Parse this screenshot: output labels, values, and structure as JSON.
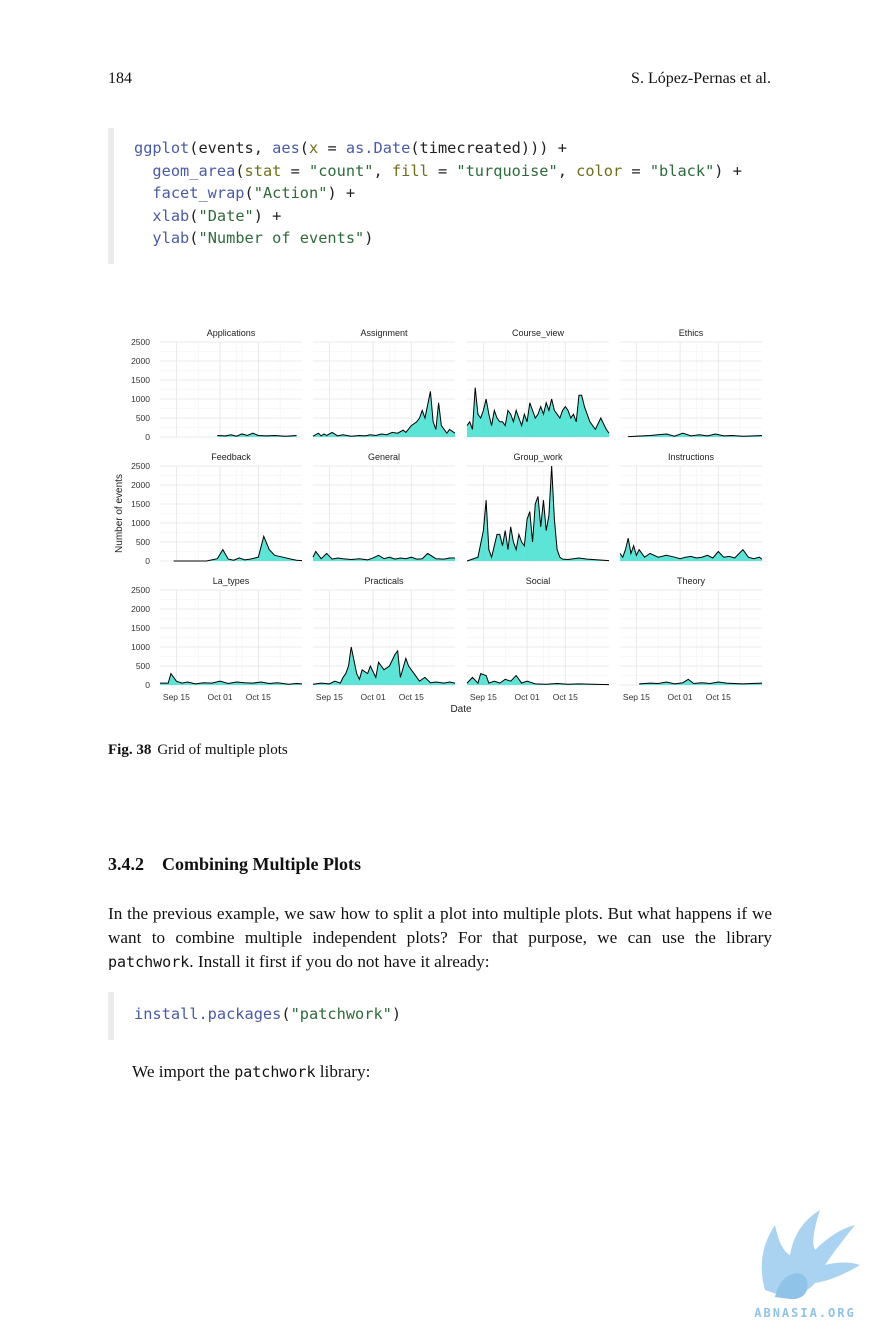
{
  "header": {
    "page_number": "184",
    "running_head": "S. López-Pernas et al."
  },
  "code_block_1": {
    "tokens": [
      [
        [
          "fn",
          "ggplot"
        ],
        [
          "plain",
          "(events, "
        ],
        [
          "fn",
          "aes"
        ],
        [
          "plain",
          "("
        ],
        [
          "arg",
          "x"
        ],
        [
          "plain",
          " = "
        ],
        [
          "fn",
          "as.Date"
        ],
        [
          "plain",
          "(timecreated))) +"
        ]
      ],
      [
        [
          "plain",
          "  "
        ],
        [
          "fn",
          "geom_area"
        ],
        [
          "plain",
          "("
        ],
        [
          "arg",
          "stat"
        ],
        [
          "plain",
          " = "
        ],
        [
          "str",
          "\"count\""
        ],
        [
          "plain",
          ", "
        ],
        [
          "arg",
          "fill"
        ],
        [
          "plain",
          " = "
        ],
        [
          "str",
          "\"turquoise\""
        ],
        [
          "plain",
          ", "
        ],
        [
          "arg",
          "color"
        ],
        [
          "plain",
          " = "
        ],
        [
          "str",
          "\"black\""
        ],
        [
          "plain",
          ") +"
        ]
      ],
      [
        [
          "plain",
          "  "
        ],
        [
          "fn",
          "facet_wrap"
        ],
        [
          "plain",
          "("
        ],
        [
          "str",
          "\"Action\""
        ],
        [
          "plain",
          ") +"
        ]
      ],
      [
        [
          "plain",
          "  "
        ],
        [
          "fn",
          "xlab"
        ],
        [
          "plain",
          "("
        ],
        [
          "str",
          "\"Date\""
        ],
        [
          "plain",
          ") +"
        ]
      ],
      [
        [
          "plain",
          "  "
        ],
        [
          "fn",
          "ylab"
        ],
        [
          "plain",
          "("
        ],
        [
          "str",
          "\"Number of events\""
        ],
        [
          "plain",
          ")"
        ]
      ]
    ]
  },
  "chart_data": {
    "type": "area",
    "xlabel": "Date",
    "ylabel": "Number of events",
    "ylim": [
      0,
      2500
    ],
    "y_ticks": [
      0,
      500,
      1000,
      1500,
      2000,
      2500
    ],
    "x_ticks": [
      "Sep 15",
      "Oct 01",
      "Oct 15"
    ],
    "x_tick_dates": [
      "2023-09-15",
      "2023-10-01",
      "2023-10-15"
    ],
    "x_range": [
      "2023-09-09",
      "2023-10-31"
    ],
    "grid": true,
    "fill_color": "#40E0D0",
    "line_color": "#000000",
    "series": [
      {
        "name": "Applications",
        "x": [
          "2023-09-30",
          "2023-10-03",
          "2023-10-05",
          "2023-10-07",
          "2023-10-09",
          "2023-10-11",
          "2023-10-13",
          "2023-10-15",
          "2023-10-18",
          "2023-10-21",
          "2023-10-25",
          "2023-10-27",
          "2023-10-29"
        ],
        "values": [
          40,
          30,
          60,
          20,
          80,
          40,
          100,
          40,
          30,
          40,
          20,
          30,
          40
        ]
      },
      {
        "name": "Assignment",
        "x": [
          "2023-09-09",
          "2023-09-11",
          "2023-09-12",
          "2023-09-13",
          "2023-09-14",
          "2023-09-16",
          "2023-09-18",
          "2023-09-20",
          "2023-09-23",
          "2023-09-26",
          "2023-09-28",
          "2023-09-30",
          "2023-10-02",
          "2023-10-04",
          "2023-10-06",
          "2023-10-08",
          "2023-10-10",
          "2023-10-12",
          "2023-10-13",
          "2023-10-15",
          "2023-10-17",
          "2023-10-18",
          "2023-10-19",
          "2023-10-20",
          "2023-10-22",
          "2023-10-23",
          "2023-10-24",
          "2023-10-25",
          "2023-10-26",
          "2023-10-28",
          "2023-10-29",
          "2023-10-31"
        ],
        "values": [
          20,
          100,
          30,
          80,
          40,
          120,
          30,
          60,
          20,
          40,
          30,
          60,
          40,
          80,
          60,
          120,
          100,
          180,
          120,
          300,
          400,
          500,
          700,
          500,
          1200,
          400,
          200,
          900,
          300,
          100,
          200,
          100
        ]
      },
      {
        "name": "Course_view",
        "x": [
          "2023-09-09",
          "2023-09-10",
          "2023-09-11",
          "2023-09-12",
          "2023-09-13",
          "2023-09-14",
          "2023-09-15",
          "2023-09-16",
          "2023-09-17",
          "2023-09-18",
          "2023-09-19",
          "2023-09-20",
          "2023-09-21",
          "2023-09-22",
          "2023-09-23",
          "2023-09-24",
          "2023-09-25",
          "2023-09-26",
          "2023-09-27",
          "2023-09-28",
          "2023-09-29",
          "2023-09-30",
          "2023-10-01",
          "2023-10-02",
          "2023-10-03",
          "2023-10-04",
          "2023-10-05",
          "2023-10-06",
          "2023-10-07",
          "2023-10-08",
          "2023-10-09",
          "2023-10-10",
          "2023-10-11",
          "2023-10-12",
          "2023-10-13",
          "2023-10-14",
          "2023-10-15",
          "2023-10-16",
          "2023-10-17",
          "2023-10-18",
          "2023-10-19",
          "2023-10-20",
          "2023-10-21",
          "2023-10-22",
          "2023-10-23",
          "2023-10-24",
          "2023-10-25",
          "2023-10-26",
          "2023-10-28",
          "2023-10-30",
          "2023-10-31"
        ],
        "values": [
          300,
          400,
          200,
          1300,
          600,
          500,
          700,
          1000,
          600,
          300,
          700,
          500,
          400,
          400,
          300,
          700,
          600,
          400,
          700,
          500,
          300,
          600,
          400,
          900,
          700,
          500,
          600,
          800,
          600,
          900,
          700,
          1000,
          700,
          600,
          500,
          700,
          800,
          700,
          500,
          600,
          400,
          1100,
          1100,
          800,
          600,
          400,
          300,
          200,
          500,
          200,
          100
        ]
      },
      {
        "name": "Ethics",
        "x": [
          "2023-09-12",
          "2023-09-20",
          "2023-09-26",
          "2023-09-29",
          "2023-10-02",
          "2023-10-05",
          "2023-10-08",
          "2023-10-11",
          "2023-10-14",
          "2023-10-17",
          "2023-10-20",
          "2023-10-24",
          "2023-10-28",
          "2023-10-31"
        ],
        "values": [
          10,
          40,
          80,
          20,
          100,
          30,
          60,
          30,
          80,
          30,
          40,
          20,
          30,
          40
        ]
      },
      {
        "name": "Feedback",
        "x": [
          "2023-09-14",
          "2023-09-20",
          "2023-09-26",
          "2023-09-30",
          "2023-10-02",
          "2023-10-04",
          "2023-10-06",
          "2023-10-08",
          "2023-10-10",
          "2023-10-12",
          "2023-10-15",
          "2023-10-17",
          "2023-10-19",
          "2023-10-21",
          "2023-10-24",
          "2023-10-27",
          "2023-10-29",
          "2023-10-31"
        ],
        "values": [
          0,
          0,
          0,
          60,
          300,
          50,
          20,
          80,
          30,
          50,
          100,
          650,
          300,
          150,
          100,
          50,
          20,
          10
        ]
      },
      {
        "name": "General",
        "x": [
          "2023-09-09",
          "2023-09-10",
          "2023-09-12",
          "2023-09-14",
          "2023-09-16",
          "2023-09-18",
          "2023-09-20",
          "2023-09-23",
          "2023-09-26",
          "2023-09-29",
          "2023-10-01",
          "2023-10-03",
          "2023-10-05",
          "2023-10-07",
          "2023-10-09",
          "2023-10-11",
          "2023-10-13",
          "2023-10-15",
          "2023-10-17",
          "2023-10-19",
          "2023-10-21",
          "2023-10-24",
          "2023-10-27",
          "2023-10-29",
          "2023-10-31"
        ],
        "values": [
          100,
          250,
          60,
          200,
          50,
          80,
          60,
          40,
          60,
          30,
          80,
          150,
          60,
          100,
          50,
          80,
          60,
          100,
          50,
          60,
          200,
          60,
          50,
          80,
          80
        ]
      },
      {
        "name": "Group_work",
        "x": [
          "2023-09-09",
          "2023-09-11",
          "2023-09-13",
          "2023-09-15",
          "2023-09-16",
          "2023-09-17",
          "2023-09-18",
          "2023-09-19",
          "2023-09-20",
          "2023-09-21",
          "2023-09-22",
          "2023-09-23",
          "2023-09-24",
          "2023-09-25",
          "2023-09-26",
          "2023-09-27",
          "2023-09-28",
          "2023-09-29",
          "2023-09-30",
          "2023-10-01",
          "2023-10-02",
          "2023-10-03",
          "2023-10-04",
          "2023-10-05",
          "2023-10-06",
          "2023-10-07",
          "2023-10-08",
          "2023-10-09",
          "2023-10-10",
          "2023-10-11",
          "2023-10-12",
          "2023-10-13",
          "2023-10-14",
          "2023-10-16",
          "2023-10-18",
          "2023-10-20",
          "2023-10-23",
          "2023-10-25",
          "2023-10-27",
          "2023-10-29",
          "2023-10-31"
        ],
        "values": [
          0,
          50,
          100,
          800,
          1600,
          300,
          100,
          400,
          700,
          700,
          400,
          800,
          300,
          900,
          500,
          300,
          700,
          500,
          400,
          1100,
          1300,
          500,
          1500,
          1700,
          900,
          1600,
          800,
          1200,
          2500,
          1100,
          300,
          100,
          50,
          40,
          60,
          80,
          50,
          40,
          30,
          20,
          10
        ]
      },
      {
        "name": "Instructions",
        "x": [
          "2023-09-09",
          "2023-09-10",
          "2023-09-11",
          "2023-09-12",
          "2023-09-13",
          "2023-09-14",
          "2023-09-15",
          "2023-09-16",
          "2023-09-18",
          "2023-09-20",
          "2023-09-23",
          "2023-09-26",
          "2023-09-29",
          "2023-10-01",
          "2023-10-03",
          "2023-10-05",
          "2023-10-07",
          "2023-10-09",
          "2023-10-11",
          "2023-10-13",
          "2023-10-15",
          "2023-10-17",
          "2023-10-19",
          "2023-10-21",
          "2023-10-24",
          "2023-10-26",
          "2023-10-28",
          "2023-10-30",
          "2023-10-31"
        ],
        "values": [
          200,
          100,
          300,
          600,
          200,
          400,
          150,
          300,
          100,
          200,
          100,
          150,
          100,
          60,
          100,
          120,
          80,
          100,
          150,
          80,
          250,
          100,
          120,
          80,
          300,
          100,
          60,
          100,
          50
        ]
      },
      {
        "name": "La_types",
        "x": [
          "2023-09-09",
          "2023-09-10",
          "2023-09-12",
          "2023-09-13",
          "2023-09-15",
          "2023-09-17",
          "2023-09-19",
          "2023-09-22",
          "2023-09-25",
          "2023-09-28",
          "2023-10-01",
          "2023-10-04",
          "2023-10-07",
          "2023-10-10",
          "2023-10-13",
          "2023-10-16",
          "2023-10-19",
          "2023-10-22",
          "2023-10-26",
          "2023-10-29",
          "2023-10-31"
        ],
        "values": [
          50,
          50,
          50,
          300,
          100,
          50,
          80,
          30,
          60,
          50,
          100,
          40,
          80,
          60,
          50,
          80,
          40,
          60,
          20,
          40,
          30
        ]
      },
      {
        "name": "Practicals",
        "x": [
          "2023-09-09",
          "2023-09-12",
          "2023-09-15",
          "2023-09-17",
          "2023-09-19",
          "2023-09-20",
          "2023-09-21",
          "2023-09-22",
          "2023-09-23",
          "2023-09-25",
          "2023-09-26",
          "2023-09-27",
          "2023-09-29",
          "2023-09-30",
          "2023-10-02",
          "2023-10-03",
          "2023-10-05",
          "2023-10-07",
          "2023-10-09",
          "2023-10-10",
          "2023-10-11",
          "2023-10-13",
          "2023-10-14",
          "2023-10-16",
          "2023-10-18",
          "2023-10-20",
          "2023-10-22",
          "2023-10-24",
          "2023-10-27",
          "2023-10-29",
          "2023-10-31"
        ],
        "values": [
          20,
          50,
          30,
          100,
          50,
          200,
          300,
          500,
          1000,
          300,
          150,
          400,
          300,
          500,
          200,
          600,
          400,
          500,
          800,
          900,
          200,
          700,
          500,
          300,
          100,
          200,
          60,
          80,
          50,
          80,
          50
        ]
      },
      {
        "name": "Social",
        "x": [
          "2023-09-09",
          "2023-09-11",
          "2023-09-13",
          "2023-09-14",
          "2023-09-16",
          "2023-09-17",
          "2023-09-19",
          "2023-09-21",
          "2023-09-23",
          "2023-09-25",
          "2023-09-27",
          "2023-09-29",
          "2023-10-01",
          "2023-10-04",
          "2023-10-08",
          "2023-10-12",
          "2023-10-16",
          "2023-10-20",
          "2023-10-25",
          "2023-10-31"
        ],
        "values": [
          50,
          200,
          50,
          300,
          250,
          50,
          100,
          50,
          150,
          100,
          250,
          50,
          100,
          30,
          20,
          40,
          20,
          30,
          20,
          10
        ]
      },
      {
        "name": "Theory",
        "x": [
          "2023-09-16",
          "2023-09-20",
          "2023-09-23",
          "2023-09-26",
          "2023-09-29",
          "2023-10-02",
          "2023-10-04",
          "2023-10-06",
          "2023-10-09",
          "2023-10-12",
          "2023-10-15",
          "2023-10-18",
          "2023-10-21",
          "2023-10-24",
          "2023-10-27",
          "2023-10-31"
        ],
        "values": [
          30,
          50,
          40,
          80,
          30,
          60,
          150,
          40,
          60,
          40,
          80,
          50,
          40,
          30,
          40,
          50
        ]
      }
    ]
  },
  "figure_caption": {
    "label": "Fig. 38",
    "text": "Grid of multiple plots"
  },
  "section": {
    "number": "3.4.2",
    "title": "Combining Multiple Plots"
  },
  "paragraph_1": {
    "before": "In the previous example, we saw how to split a plot into multiple plots. But what happens if we want to combine multiple independent plots? For that purpose, we can use the library ",
    "code": "patchwork",
    "after": ". Install it first if you do not have it already:"
  },
  "code_block_2": {
    "tokens": [
      [
        [
          "fn",
          "install.packages"
        ],
        [
          "plain",
          "("
        ],
        [
          "str",
          "\"patchwork\""
        ],
        [
          "plain",
          ")"
        ]
      ]
    ]
  },
  "paragraph_2": {
    "before": "We import the ",
    "code": "patchwork",
    "after": " library:"
  },
  "watermark": {
    "text": "ABNASIA.ORG",
    "color": "#8fc3e8"
  }
}
